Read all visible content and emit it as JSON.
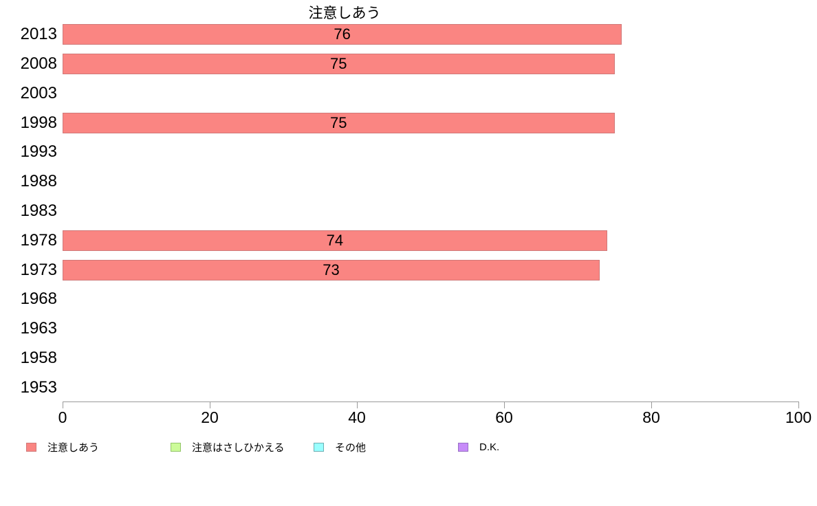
{
  "chart_data": {
    "type": "bar",
    "orientation": "horizontal",
    "title": "注意しあう",
    "categories": [
      "2013",
      "2008",
      "2003",
      "1998",
      "1993",
      "1988",
      "1983",
      "1978",
      "1973",
      "1968",
      "1963",
      "1958",
      "1953"
    ],
    "series": [
      {
        "name": "注意しあう",
        "fill": "#FA8582",
        "border": "#D07878",
        "values": [
          76,
          75,
          null,
          75,
          null,
          null,
          null,
          74,
          73,
          null,
          null,
          null,
          null
        ]
      }
    ],
    "xlim": [
      0,
      100
    ],
    "x_ticks": [
      0,
      20,
      40,
      60,
      80,
      100
    ],
    "grid": "off",
    "legend_position": "bottom",
    "legend": [
      {
        "label": "注意しあう",
        "fill": "#FA8582",
        "border": "#D07878"
      },
      {
        "label": "注意はさしひかえる",
        "fill": "#CCFB99",
        "border": "#93C46A"
      },
      {
        "label": "その他",
        "fill": "#99FFFF",
        "border": "#6CAEB2"
      },
      {
        "label": "D.K.",
        "fill": "#C78BF9",
        "border": "#9770C4"
      }
    ],
    "axis_color": "#9A9A9A",
    "text_color": "#000000"
  }
}
